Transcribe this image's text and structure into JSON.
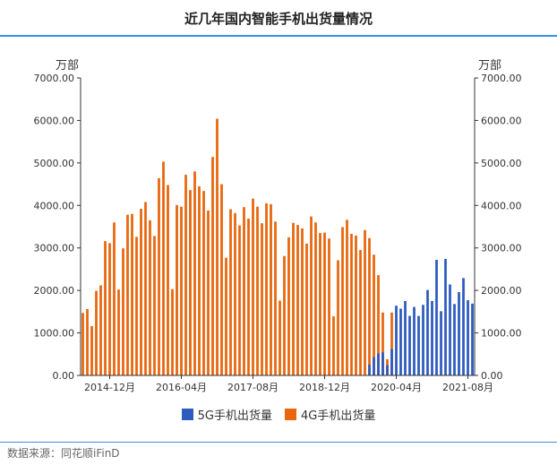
{
  "header": {
    "title": "近几年国内智能手机出货量情况"
  },
  "footer": {
    "source": "数据来源：同花顺iFinD"
  },
  "colors": {
    "series_5g": "#2d5bbf",
    "series_4g": "#e8660d",
    "accent": "#3a8ee6"
  },
  "chart_data": {
    "type": "bar",
    "title": "近几年国内智能手机出货量情况",
    "ylabel_left": "万部",
    "ylabel_right": "万部",
    "ylim": [
      0,
      7000
    ],
    "y_ticks": [
      "0.00",
      "1000.00",
      "2000.00",
      "3000.00",
      "4000.00",
      "5000.00",
      "6000.00",
      "7000.00"
    ],
    "x_tick_labels": [
      "2014-12月",
      "2016-04月",
      "2017-08月",
      "2018-12月",
      "2020-04月",
      "2021-08月"
    ],
    "x_tick_indices": [
      6,
      22,
      38,
      54,
      70,
      86
    ],
    "legend": [
      "5G手机出货量",
      "4G手机出货量"
    ],
    "legend_position": "bottom",
    "grid": false,
    "series": [
      {
        "name": "4G手机出货量",
        "values": [
          1470,
          1560,
          1160,
          1990,
          2120,
          3160,
          3110,
          3600,
          2020,
          2990,
          3780,
          3800,
          3260,
          3920,
          4080,
          3650,
          3280,
          4640,
          5030,
          4480,
          2030,
          4010,
          3970,
          4720,
          4360,
          4800,
          4450,
          4340,
          3880,
          5140,
          6040,
          4500,
          2770,
          3910,
          3820,
          3530,
          3960,
          3690,
          4160,
          3970,
          3580,
          4050,
          4030,
          3620,
          1760,
          2810,
          3250,
          3590,
          3540,
          3460,
          3100,
          3740,
          3600,
          3350,
          3360,
          3220,
          1390,
          2710,
          3490,
          3660,
          3330,
          3290,
          2950,
          3420,
          3230,
          2840,
          2360,
          1480,
          380,
          1480,
          0,
          0,
          0,
          0,
          0,
          0,
          0,
          0,
          0,
          0,
          0,
          0,
          0,
          0,
          0,
          0,
          0,
          0
        ]
      },
      {
        "name": "5G手机出货量",
        "values": [
          0,
          0,
          0,
          0,
          0,
          0,
          0,
          0,
          0,
          0,
          0,
          0,
          0,
          0,
          0,
          0,
          0,
          0,
          0,
          0,
          0,
          0,
          0,
          0,
          0,
          0,
          0,
          0,
          0,
          0,
          0,
          0,
          0,
          0,
          0,
          0,
          0,
          0,
          0,
          0,
          0,
          0,
          0,
          0,
          0,
          0,
          0,
          0,
          0,
          0,
          0,
          0,
          0,
          0,
          0,
          0,
          0,
          0,
          0,
          0,
          0,
          0,
          0,
          0,
          250,
          430,
          520,
          540,
          240,
          620,
          1640,
          1570,
          1750,
          1400,
          1610,
          1400,
          1660,
          2010,
          1750,
          2720,
          1510,
          2740,
          2140,
          1680,
          1960,
          2290,
          1770,
          1690
        ]
      }
    ]
  }
}
